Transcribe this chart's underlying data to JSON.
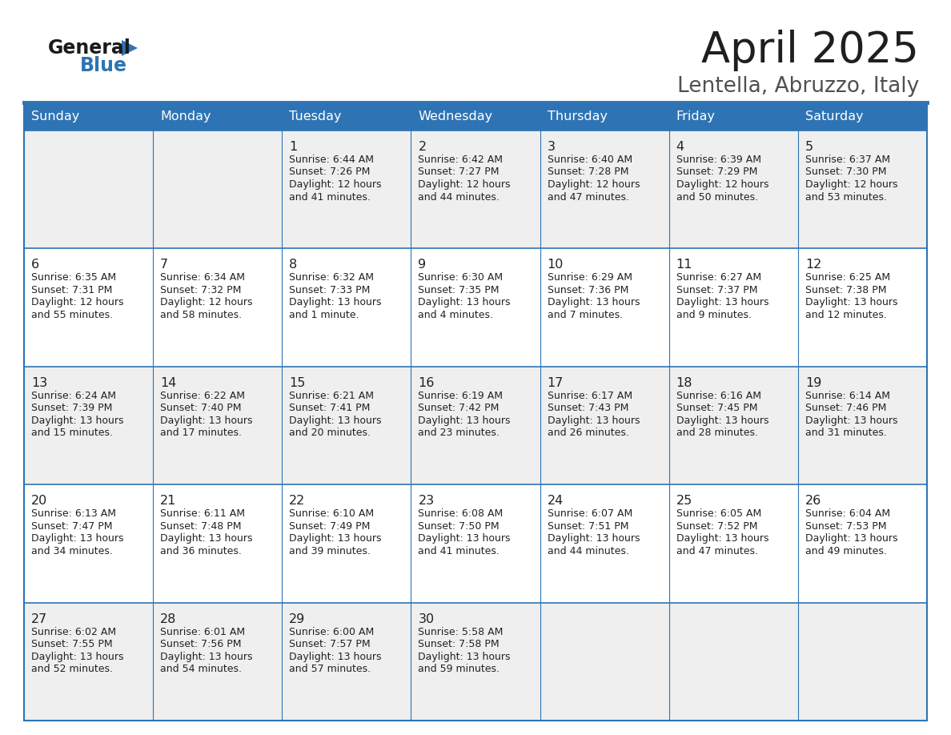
{
  "title": "April 2025",
  "subtitle": "Lentella, Abruzzo, Italy",
  "header_color": "#2E74B5",
  "header_text_color": "#FFFFFF",
  "cell_bg_even": "#EFEFEF",
  "cell_bg_odd": "#FFFFFF",
  "day_headers": [
    "Sunday",
    "Monday",
    "Tuesday",
    "Wednesday",
    "Thursday",
    "Friday",
    "Saturday"
  ],
  "title_color": "#1F1F1F",
  "subtitle_color": "#505050",
  "text_color": "#222222",
  "line_color": "#2E74B5",
  "logo_color1": "#1A1A1A",
  "logo_color2": "#2E74B5",
  "weeks": [
    [
      {
        "day": "",
        "sunrise": "",
        "sunset": "",
        "daylight": ""
      },
      {
        "day": "",
        "sunrise": "",
        "sunset": "",
        "daylight": ""
      },
      {
        "day": "1",
        "sunrise": "6:44 AM",
        "sunset": "7:26 PM",
        "daylight": "12 hours",
        "daylight2": "and 41 minutes."
      },
      {
        "day": "2",
        "sunrise": "6:42 AM",
        "sunset": "7:27 PM",
        "daylight": "12 hours",
        "daylight2": "and 44 minutes."
      },
      {
        "day": "3",
        "sunrise": "6:40 AM",
        "sunset": "7:28 PM",
        "daylight": "12 hours",
        "daylight2": "and 47 minutes."
      },
      {
        "day": "4",
        "sunrise": "6:39 AM",
        "sunset": "7:29 PM",
        "daylight": "12 hours",
        "daylight2": "and 50 minutes."
      },
      {
        "day": "5",
        "sunrise": "6:37 AM",
        "sunset": "7:30 PM",
        "daylight": "12 hours",
        "daylight2": "and 53 minutes."
      }
    ],
    [
      {
        "day": "6",
        "sunrise": "6:35 AM",
        "sunset": "7:31 PM",
        "daylight": "12 hours",
        "daylight2": "and 55 minutes."
      },
      {
        "day": "7",
        "sunrise": "6:34 AM",
        "sunset": "7:32 PM",
        "daylight": "12 hours",
        "daylight2": "and 58 minutes."
      },
      {
        "day": "8",
        "sunrise": "6:32 AM",
        "sunset": "7:33 PM",
        "daylight": "13 hours",
        "daylight2": "and 1 minute."
      },
      {
        "day": "9",
        "sunrise": "6:30 AM",
        "sunset": "7:35 PM",
        "daylight": "13 hours",
        "daylight2": "and 4 minutes."
      },
      {
        "day": "10",
        "sunrise": "6:29 AM",
        "sunset": "7:36 PM",
        "daylight": "13 hours",
        "daylight2": "and 7 minutes."
      },
      {
        "day": "11",
        "sunrise": "6:27 AM",
        "sunset": "7:37 PM",
        "daylight": "13 hours",
        "daylight2": "and 9 minutes."
      },
      {
        "day": "12",
        "sunrise": "6:25 AM",
        "sunset": "7:38 PM",
        "daylight": "13 hours",
        "daylight2": "and 12 minutes."
      }
    ],
    [
      {
        "day": "13",
        "sunrise": "6:24 AM",
        "sunset": "7:39 PM",
        "daylight": "13 hours",
        "daylight2": "and 15 minutes."
      },
      {
        "day": "14",
        "sunrise": "6:22 AM",
        "sunset": "7:40 PM",
        "daylight": "13 hours",
        "daylight2": "and 17 minutes."
      },
      {
        "day": "15",
        "sunrise": "6:21 AM",
        "sunset": "7:41 PM",
        "daylight": "13 hours",
        "daylight2": "and 20 minutes."
      },
      {
        "day": "16",
        "sunrise": "6:19 AM",
        "sunset": "7:42 PM",
        "daylight": "13 hours",
        "daylight2": "and 23 minutes."
      },
      {
        "day": "17",
        "sunrise": "6:17 AM",
        "sunset": "7:43 PM",
        "daylight": "13 hours",
        "daylight2": "and 26 minutes."
      },
      {
        "day": "18",
        "sunrise": "6:16 AM",
        "sunset": "7:45 PM",
        "daylight": "13 hours",
        "daylight2": "and 28 minutes."
      },
      {
        "day": "19",
        "sunrise": "6:14 AM",
        "sunset": "7:46 PM",
        "daylight": "13 hours",
        "daylight2": "and 31 minutes."
      }
    ],
    [
      {
        "day": "20",
        "sunrise": "6:13 AM",
        "sunset": "7:47 PM",
        "daylight": "13 hours",
        "daylight2": "and 34 minutes."
      },
      {
        "day": "21",
        "sunrise": "6:11 AM",
        "sunset": "7:48 PM",
        "daylight": "13 hours",
        "daylight2": "and 36 minutes."
      },
      {
        "day": "22",
        "sunrise": "6:10 AM",
        "sunset": "7:49 PM",
        "daylight": "13 hours",
        "daylight2": "and 39 minutes."
      },
      {
        "day": "23",
        "sunrise": "6:08 AM",
        "sunset": "7:50 PM",
        "daylight": "13 hours",
        "daylight2": "and 41 minutes."
      },
      {
        "day": "24",
        "sunrise": "6:07 AM",
        "sunset": "7:51 PM",
        "daylight": "13 hours",
        "daylight2": "and 44 minutes."
      },
      {
        "day": "25",
        "sunrise": "6:05 AM",
        "sunset": "7:52 PM",
        "daylight": "13 hours",
        "daylight2": "and 47 minutes."
      },
      {
        "day": "26",
        "sunrise": "6:04 AM",
        "sunset": "7:53 PM",
        "daylight": "13 hours",
        "daylight2": "and 49 minutes."
      }
    ],
    [
      {
        "day": "27",
        "sunrise": "6:02 AM",
        "sunset": "7:55 PM",
        "daylight": "13 hours",
        "daylight2": "and 52 minutes."
      },
      {
        "day": "28",
        "sunrise": "6:01 AM",
        "sunset": "7:56 PM",
        "daylight": "13 hours",
        "daylight2": "and 54 minutes."
      },
      {
        "day": "29",
        "sunrise": "6:00 AM",
        "sunset": "7:57 PM",
        "daylight": "13 hours",
        "daylight2": "and 57 minutes."
      },
      {
        "day": "30",
        "sunrise": "5:58 AM",
        "sunset": "7:58 PM",
        "daylight": "13 hours",
        "daylight2": "and 59 minutes."
      },
      {
        "day": "",
        "sunrise": "",
        "sunset": "",
        "daylight": "",
        "daylight2": ""
      },
      {
        "day": "",
        "sunrise": "",
        "sunset": "",
        "daylight": "",
        "daylight2": ""
      },
      {
        "day": "",
        "sunrise": "",
        "sunset": "",
        "daylight": "",
        "daylight2": ""
      }
    ]
  ]
}
